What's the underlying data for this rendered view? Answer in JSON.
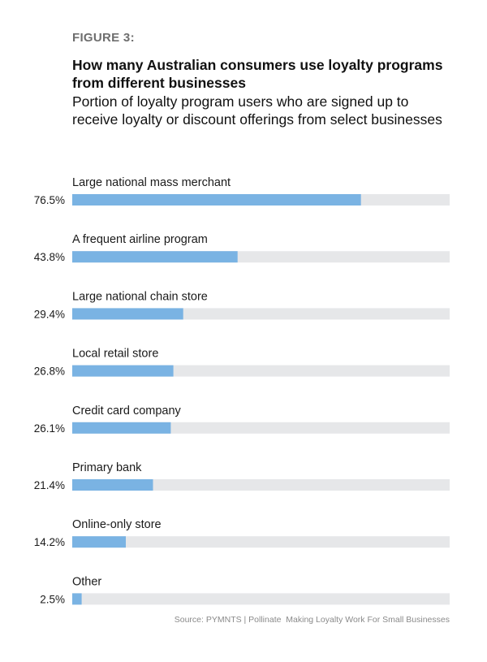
{
  "header": {
    "figure_label": "FIGURE 3:",
    "title": "How many Australian consumers use loyalty programs from different businesses",
    "subtitle": "Portion of loyalty program users who are signed up to receive loyalty or discount offerings from select businesses"
  },
  "source": "Source: PYMNTS | Pollinate  Making Loyalty Work For Small Businesses",
  "colors": {
    "bar": "#7ab3e3",
    "track": "#e6e7e9"
  },
  "chart_data": {
    "type": "bar",
    "orientation": "horizontal",
    "title": "How many Australian consumers use loyalty programs from different businesses",
    "xlim": [
      0,
      100
    ],
    "unit": "%",
    "categories": [
      "Large national mass merchant",
      "A frequent airline program",
      "Large national chain store",
      "Local retail store",
      "Credit card company",
      "Primary bank",
      "Online-only store",
      "Other"
    ],
    "values": [
      76.5,
      43.8,
      29.4,
      26.8,
      26.1,
      21.4,
      14.2,
      2.5
    ],
    "value_labels": [
      "76.5%",
      "43.8%",
      "29.4%",
      "26.8%",
      "26.1%",
      "21.4%",
      "14.2%",
      "2.5%"
    ]
  }
}
